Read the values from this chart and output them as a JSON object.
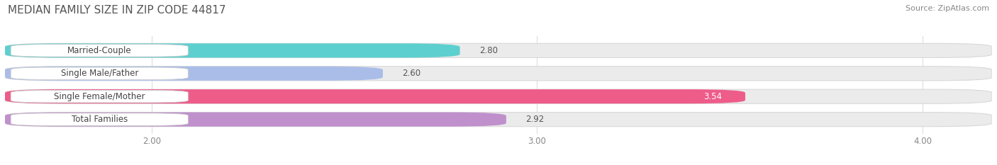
{
  "title": "MEDIAN FAMILY SIZE IN ZIP CODE 44817",
  "source": "Source: ZipAtlas.com",
  "categories": [
    "Married-Couple",
    "Single Male/Father",
    "Single Female/Mother",
    "Total Families"
  ],
  "values": [
    2.8,
    2.6,
    3.54,
    2.92
  ],
  "bar_colors": [
    "#5ECFCF",
    "#AABDE8",
    "#EE5C8A",
    "#C090CC"
  ],
  "value_colors": [
    "#555555",
    "#555555",
    "#ffffff",
    "#555555"
  ],
  "xlim_left": 1.62,
  "xlim_right": 4.18,
  "xticks": [
    2.0,
    3.0,
    4.0
  ],
  "xtick_labels": [
    "2.00",
    "3.00",
    "4.00"
  ],
  "background_color": "#ffffff",
  "bar_bg_color": "#ebebeb",
  "bar_bg_edge_color": "#d8d8d8",
  "bar_height": 0.62,
  "label_bg_color": "#ffffff",
  "label_edge_color": "#cccccc",
  "label_text_color": "#444444",
  "label_fontsize": 8.5,
  "value_fontsize": 8.5,
  "title_fontsize": 11,
  "source_fontsize": 8,
  "title_color": "#555555",
  "source_color": "#888888",
  "grid_color": "#dddddd",
  "tick_color": "#888888"
}
